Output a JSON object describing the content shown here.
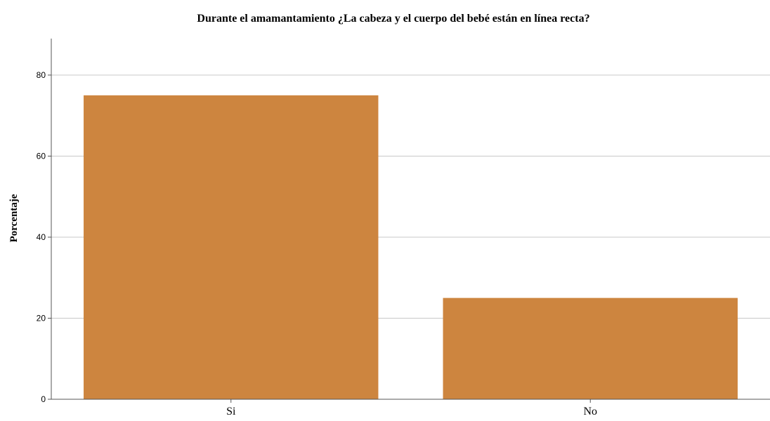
{
  "chart_data": {
    "type": "bar",
    "title": "Durante el amamantamiento ¿La cabeza y el cuerpo del bebé están en línea recta?",
    "xlabel": "",
    "ylabel": "Porcentaje",
    "categories": [
      "Si",
      "No"
    ],
    "values": [
      75,
      25
    ],
    "ylim": [
      0,
      89
    ],
    "yticks": [
      "0",
      "20",
      "40",
      "60",
      "80"
    ],
    "grid": true,
    "legend": "none",
    "colors": {
      "bar": "#cd853f",
      "grid": "#c8c8c8",
      "axis": "#555555"
    }
  }
}
